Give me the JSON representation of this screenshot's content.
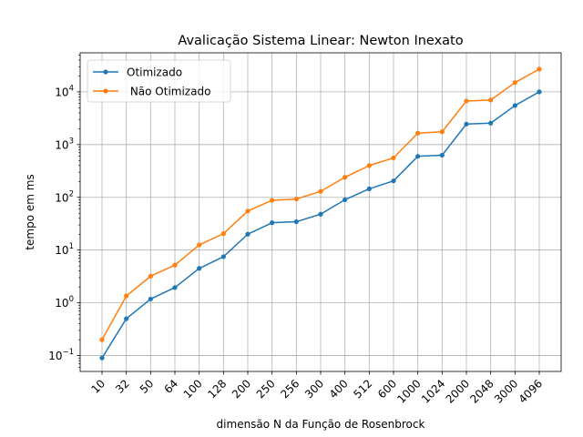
{
  "chart_data": {
    "type": "line",
    "title": "Avalicação Sistema Linear:  Newton Inexato",
    "xlabel": "dimensão N da Função de Rosenbrock",
    "ylabel": "tempo em ms",
    "yscale": "log",
    "ylim": [
      0.05,
      55000
    ],
    "y_ticks": [
      {
        "value": 0.1,
        "base": "10",
        "exp": "−1"
      },
      {
        "value": 1,
        "base": "10",
        "exp": "0"
      },
      {
        "value": 10,
        "base": "10",
        "exp": "1"
      },
      {
        "value": 100,
        "base": "10",
        "exp": "2"
      },
      {
        "value": 1000,
        "base": "10",
        "exp": "3"
      },
      {
        "value": 10000,
        "base": "10",
        "exp": "4"
      }
    ],
    "categories": [
      "10",
      "32",
      "50",
      "64",
      "100",
      "128",
      "200",
      "250",
      "256",
      "300",
      "400",
      "512",
      "600",
      "1000",
      "1024",
      "2000",
      "2048",
      "3000",
      "4096"
    ],
    "grid": true,
    "legend_position": "top-left",
    "series": [
      {
        "name": "Otimizado",
        "color": "#1f77b4",
        "marker": "circle",
        "values": [
          0.09,
          0.5,
          1.18,
          1.95,
          4.5,
          7.5,
          20,
          33,
          34.5,
          48,
          90,
          145,
          205,
          600,
          630,
          2450,
          2550,
          5500,
          10000
        ]
      },
      {
        "name": " Não Otimizado",
        "color": "#ff7f0e",
        "marker": "circle",
        "values": [
          0.2,
          1.35,
          3.2,
          5.2,
          12.5,
          20.5,
          55,
          88,
          93,
          130,
          240,
          400,
          560,
          1650,
          1750,
          6700,
          7000,
          15000,
          27000
        ]
      }
    ]
  }
}
